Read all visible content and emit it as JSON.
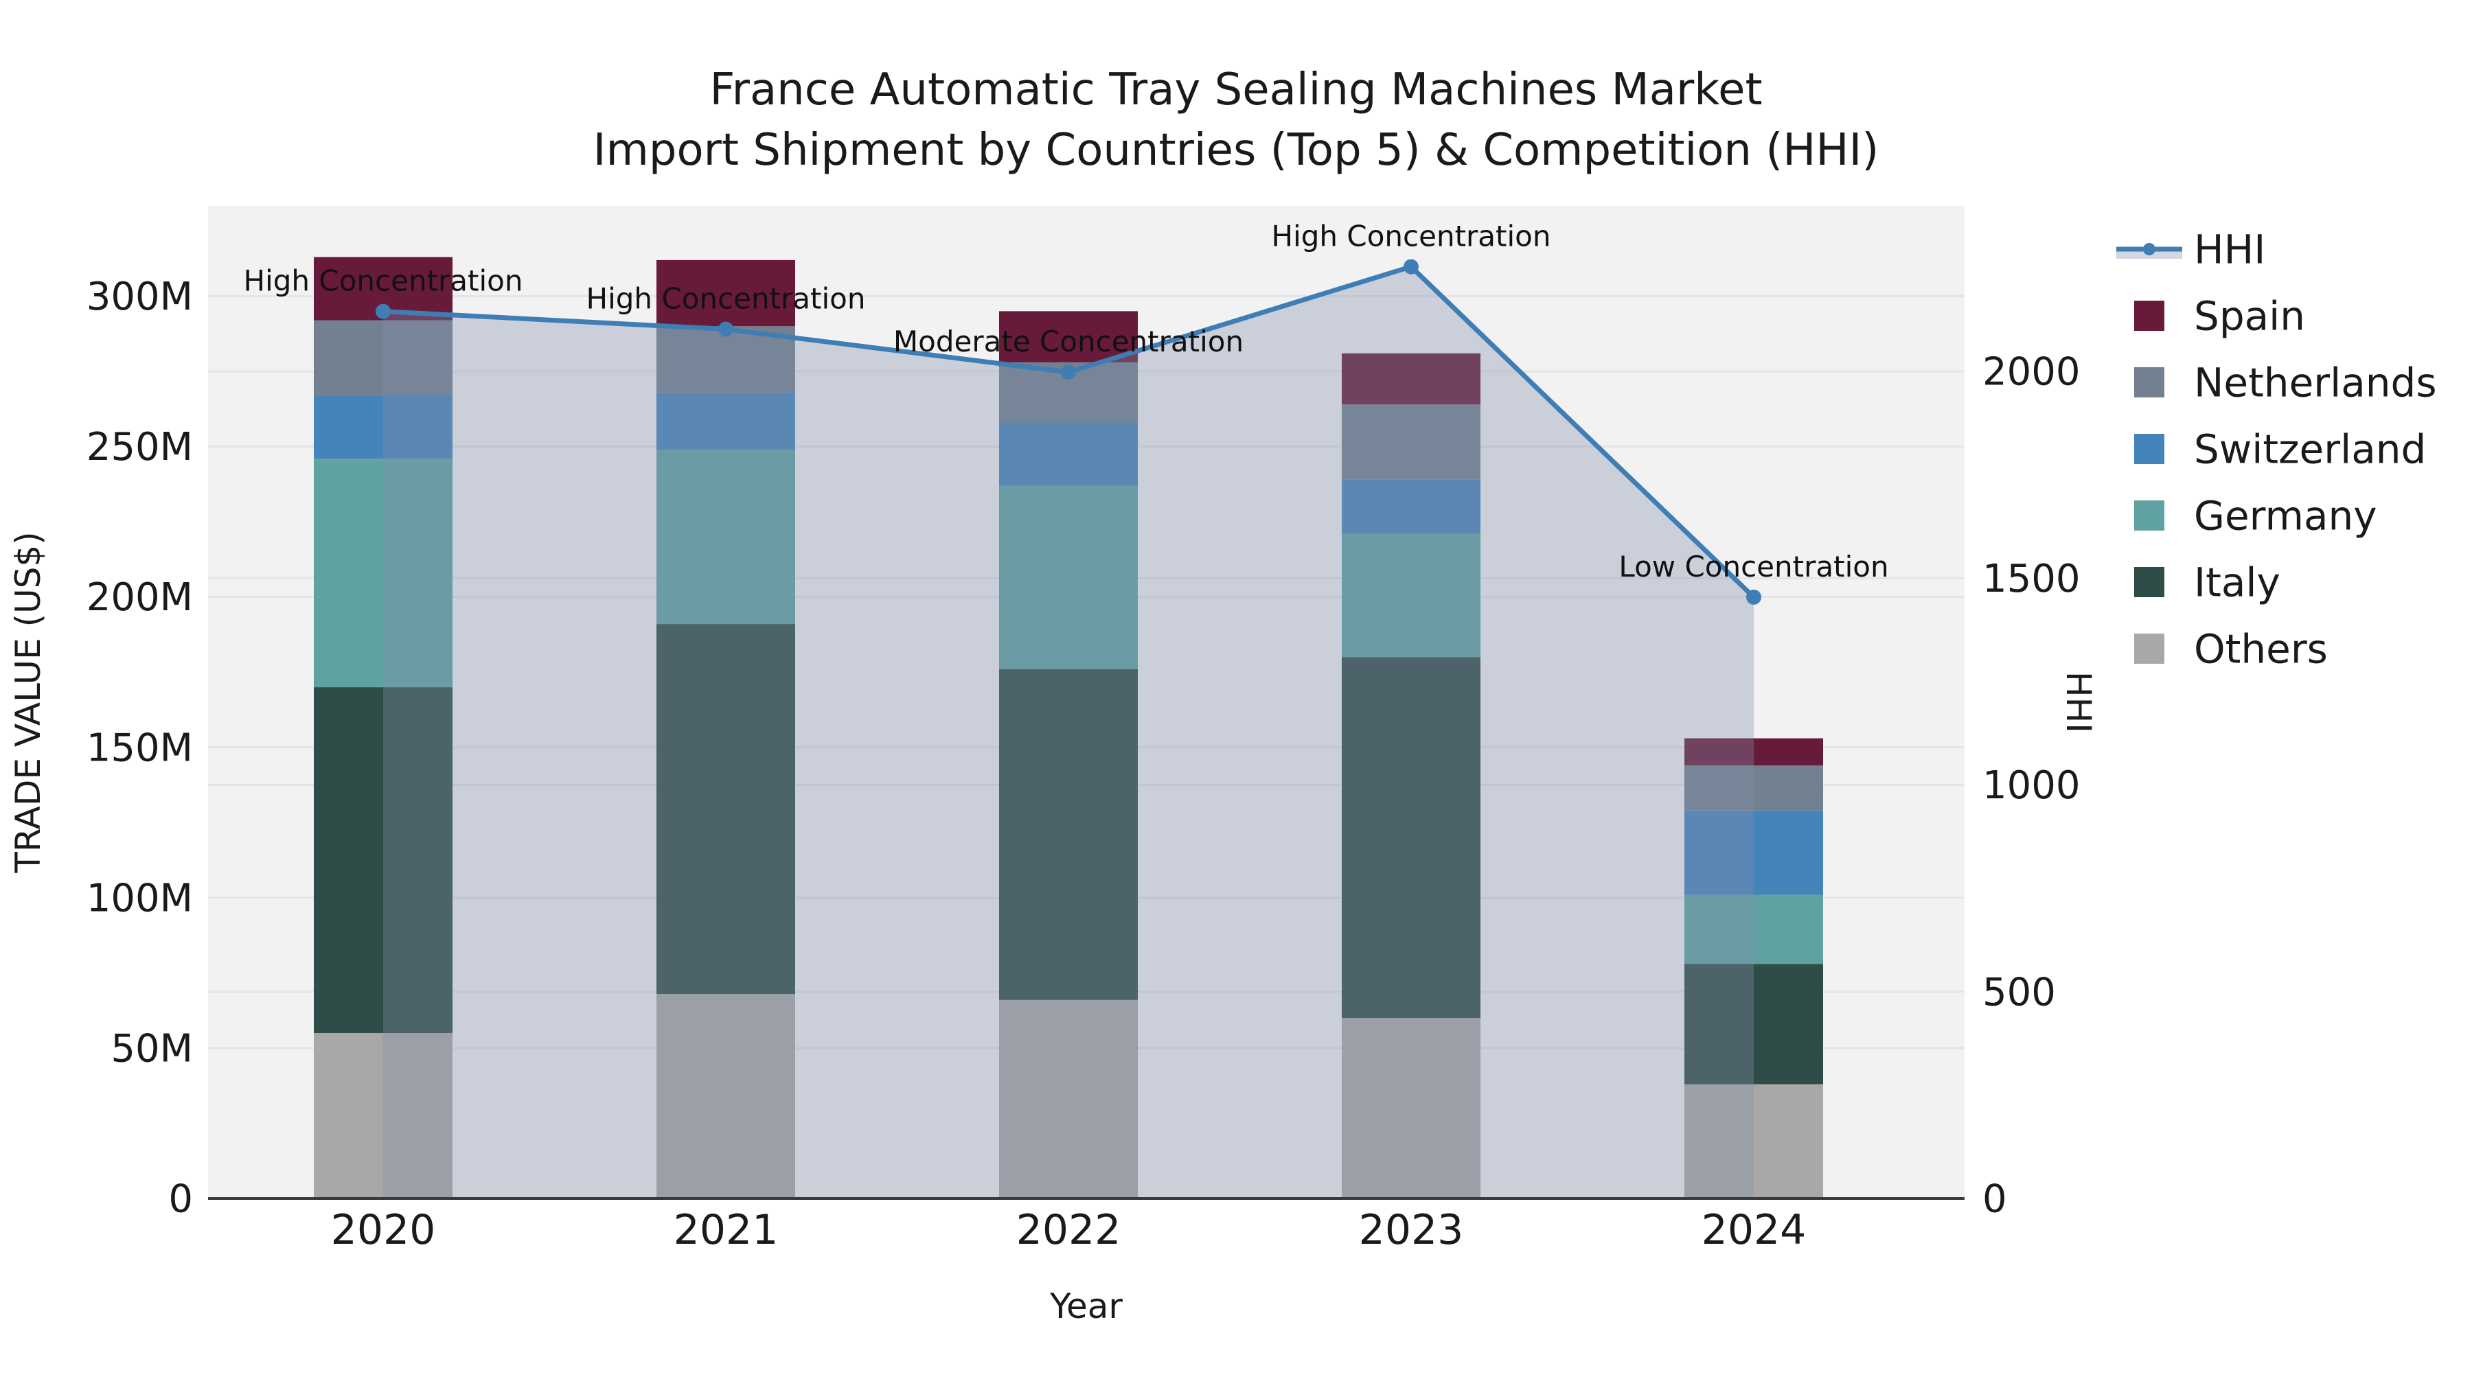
{
  "chart_data": {
    "type": "bar+line",
    "title_line1": "France Automatic Tray Sealing Machines Market",
    "title_line2": "Import Shipment by Countries (Top 5) & Competition (HHI)",
    "unit": "M US$ (trade value axis in millions)",
    "x": {
      "label": "Year",
      "categories": [
        "2020",
        "2021",
        "2022",
        "2023",
        "2024"
      ]
    },
    "y_left": {
      "label": "TRADE VALUE (US$)",
      "tick_labels": [
        "0",
        "50M",
        "100M",
        "150M",
        "200M",
        "250M",
        "300M"
      ],
      "tick_values": [
        0,
        50,
        100,
        150,
        200,
        250,
        300
      ],
      "max": 330
    },
    "y_right": {
      "label": "HHI",
      "tick_labels": [
        "0",
        "500",
        "1000",
        "1500",
        "2000"
      ],
      "tick_values": [
        0,
        500,
        1000,
        1500,
        2000
      ],
      "max": 2400
    },
    "series": [
      {
        "name": "Others",
        "color": "#a9a8a7",
        "values": [
          55,
          68,
          66,
          60,
          38
        ]
      },
      {
        "name": "Italy",
        "color": "#2e4c48",
        "values": [
          115,
          123,
          110,
          120,
          40
        ]
      },
      {
        "name": "Germany",
        "color": "#60a2a2",
        "values": [
          76,
          58,
          61,
          41,
          23
        ]
      },
      {
        "name": "Switzerland",
        "color": "#4583bb",
        "values": [
          21,
          19,
          21,
          18,
          28
        ]
      },
      {
        "name": "Netherlands",
        "color": "#73808f",
        "values": [
          25,
          22,
          20,
          25,
          15
        ]
      },
      {
        "name": "Spain",
        "color": "#681a3a",
        "values": [
          21,
          22,
          17,
          17,
          9
        ]
      }
    ],
    "totals": [
      313,
      312,
      295,
      281,
      153
    ],
    "hhi": {
      "name": "HHI",
      "color": "#3f7db5",
      "fill_color": "#808ea8",
      "fill_opacity": 0.35,
      "values": [
        2145,
        2102,
        1998,
        2253,
        1454
      ]
    },
    "annotations": [
      "High Concentration",
      "High Concentration",
      "Moderate Concentration",
      "High Concentration",
      "Low Concentration"
    ],
    "legend_order": [
      "HHI",
      "Spain",
      "Netherlands",
      "Switzerland",
      "Germany",
      "Italy",
      "Others"
    ],
    "layout_hints": {
      "grid": "horizontal gridlines for both axes",
      "legend_position": "right, outside plot",
      "plot_background": "#f2f2f3"
    }
  }
}
